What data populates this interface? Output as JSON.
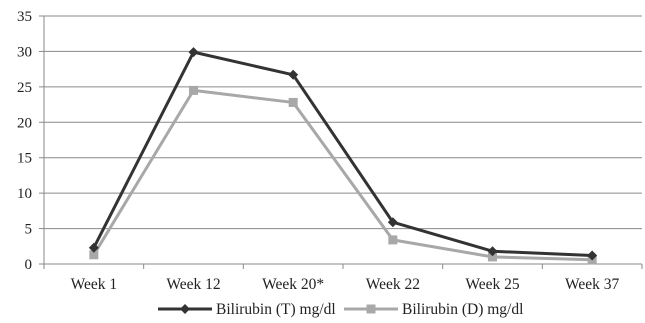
{
  "chart_data": {
    "type": "line",
    "categories": [
      "Week 1",
      "Week 12",
      "Week 20*",
      "Week 22",
      "Week 25",
      "Week 37"
    ],
    "series": [
      {
        "name": "Bilirubin (T) mg/dl",
        "values": [
          2.3,
          29.9,
          26.7,
          5.9,
          1.8,
          1.2
        ],
        "color": "#333333",
        "marker": "diamond"
      },
      {
        "name": "Bilirubin (D) mg/dl",
        "values": [
          1.3,
          24.5,
          22.8,
          3.4,
          1.0,
          0.6
        ],
        "color": "#a8a8a8",
        "marker": "square"
      }
    ],
    "ylim": [
      0,
      35
    ],
    "yticks": [
      "0",
      "5",
      "10",
      "15",
      "20",
      "25",
      "30",
      "35"
    ],
    "grid": true,
    "legend": "bottom"
  }
}
